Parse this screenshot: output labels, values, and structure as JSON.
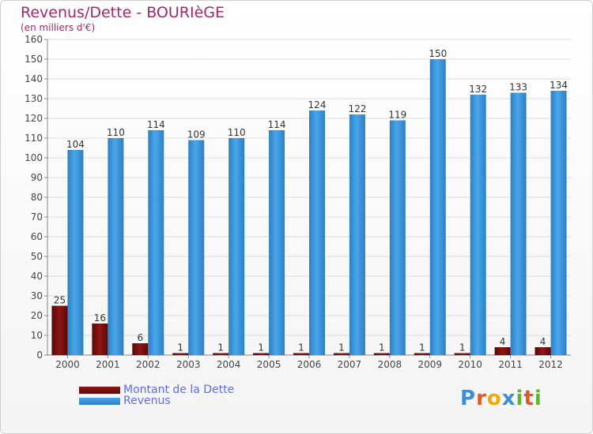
{
  "chart_data": {
    "type": "bar",
    "title": "Revenus/Dette - BOURIèGE",
    "subtitle": "(en milliers d'€)",
    "xlabel": "",
    "ylabel": "",
    "ylim": [
      0,
      160
    ],
    "yticks": [
      0,
      10,
      20,
      30,
      40,
      50,
      60,
      70,
      80,
      90,
      100,
      110,
      120,
      130,
      140,
      150,
      160
    ],
    "grid": true,
    "legend": "bottom-left",
    "categories": [
      "2000",
      "2001",
      "2002",
      "2003",
      "2004",
      "2005",
      "2006",
      "2007",
      "2008",
      "2009",
      "2010",
      "2011",
      "2012"
    ],
    "series": [
      {
        "name": "Montant de la Dette",
        "color": "#7a0e0e",
        "values": [
          25,
          16,
          6,
          1,
          1,
          1,
          1,
          1,
          1,
          1,
          1,
          4,
          4
        ]
      },
      {
        "name": "Revenus",
        "color": "#3e9be0",
        "values": [
          104,
          110,
          114,
          109,
          110,
          114,
          124,
          122,
          119,
          150,
          132,
          133,
          134
        ]
      }
    ]
  },
  "logo": {
    "text": "Proxiti",
    "letter_colors": [
      "#3a8fd8",
      "#e4572e",
      "#f2a900",
      "#3a8fd8",
      "#5fb336",
      "#e4572e",
      "#5fb336"
    ]
  }
}
